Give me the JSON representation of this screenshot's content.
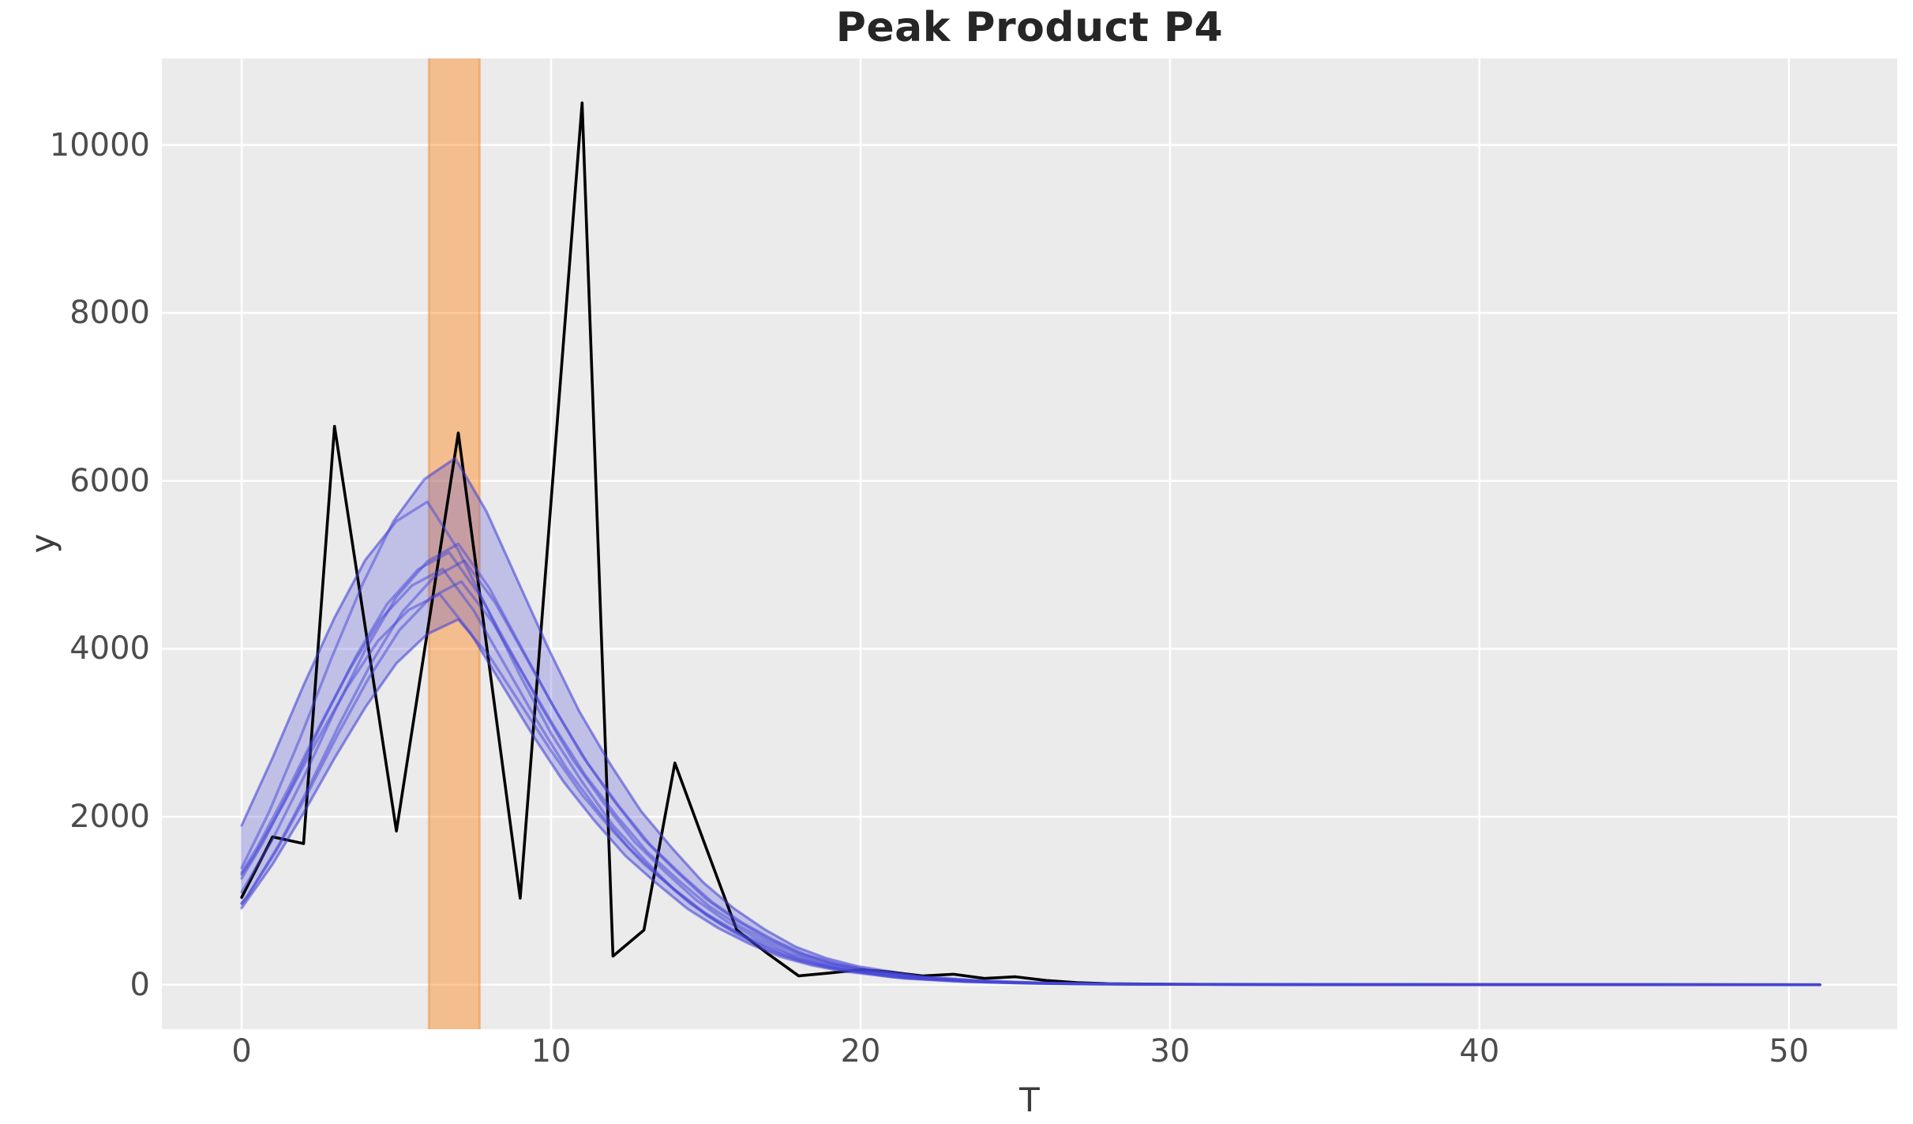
{
  "chart_data": {
    "type": "line",
    "title": "Peak Product P4",
    "xlabel": "T",
    "ylabel": "y",
    "x_ticks": [
      0,
      10,
      20,
      30,
      40,
      50
    ],
    "y_ticks": [
      0,
      2000,
      4000,
      6000,
      8000,
      10000
    ],
    "xlim": [
      -2.58,
      53.5
    ],
    "ylim": [
      -530,
      11030
    ],
    "grid": true,
    "legend": false,
    "colors": {
      "figure_background": "#ffffff",
      "axes_background": "#ebebeb",
      "gridline": "#ffffff",
      "observed": "#000000",
      "ensemble": "#4646d8",
      "highlight": "#ff7f0e"
    },
    "highlight_span": {
      "x_from": 6.05,
      "x_to": 7.69,
      "opacity": 0.42
    },
    "observed_series": {
      "line_width": 3.6,
      "t": [
        0,
        1,
        2,
        3,
        4,
        5,
        6,
        7,
        8,
        9,
        10,
        11,
        12,
        13,
        14,
        15,
        16,
        17,
        18,
        19,
        20,
        21,
        22,
        23,
        24,
        25,
        26,
        27,
        28,
        30,
        35,
        40,
        45,
        51
      ],
      "y": [
        1040,
        1760,
        1680,
        6650,
        4240,
        1830,
        4200,
        6570,
        3800,
        1030,
        5770,
        10500,
        340,
        650,
        2640,
        1640,
        650,
        370,
        105,
        140,
        178,
        150,
        105,
        125,
        75,
        95,
        50,
        25,
        12,
        5,
        2,
        1,
        1,
        0
      ]
    },
    "ensemble": {
      "line_opacity": 0.5,
      "line_width": 3.4,
      "band_fill_opacity": 0.26,
      "base_t": [
        -1,
        0,
        1,
        2,
        3,
        4,
        5,
        6,
        7,
        8,
        9,
        10,
        11,
        12,
        13,
        14,
        15,
        16,
        17,
        18,
        19,
        20,
        22,
        24,
        26,
        28,
        30,
        35,
        40,
        45,
        51
      ],
      "base_shape": [
        0.12,
        0.21,
        0.33,
        0.47,
        0.62,
        0.76,
        0.88,
        0.96,
        1.0,
        0.9,
        0.77,
        0.64,
        0.52,
        0.42,
        0.33,
        0.26,
        0.195,
        0.145,
        0.105,
        0.072,
        0.05,
        0.035,
        0.016,
        0.0075,
        0.0035,
        0.0016,
        0.0008,
        0.0002,
        0.0001,
        5e-05,
        0
      ],
      "lines": [
        {
          "peak_t": 6.9,
          "peak_y": 6270
        },
        {
          "peak_t": 6.0,
          "peak_y": 5750
        },
        {
          "peak_t": 7.0,
          "peak_y": 5250
        },
        {
          "peak_t": 6.7,
          "peak_y": 5150
        },
        {
          "peak_t": 7.2,
          "peak_y": 5050
        },
        {
          "peak_t": 6.5,
          "peak_y": 4950
        },
        {
          "peak_t": 7.1,
          "peak_y": 4800
        },
        {
          "peak_t": 6.4,
          "peak_y": 4650
        },
        {
          "peak_t": 7.0,
          "peak_y": 4350
        }
      ]
    }
  }
}
